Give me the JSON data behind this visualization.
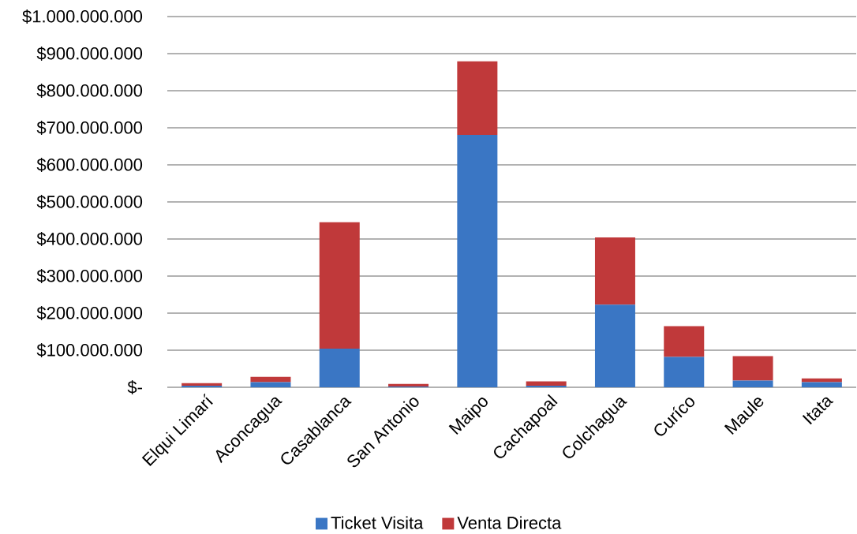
{
  "chart_data": {
    "type": "bar",
    "stacked": true,
    "categories": [
      "Elqui Limarí",
      "Aconcagua",
      "Casablanca",
      "San Antonio",
      "Maipo",
      "Cachapoal",
      "Colchagua",
      "Curíco",
      "Maule",
      "Itata"
    ],
    "series": [
      {
        "name": "Ticket Visita",
        "color": "#3a76c4",
        "values": [
          4000000,
          14000000,
          104000000,
          2000000,
          681000000,
          4000000,
          223000000,
          82000000,
          18000000,
          14000000
        ]
      },
      {
        "name": "Venta Directa",
        "color": "#c0393a",
        "values": [
          7000000,
          14000000,
          341000000,
          7000000,
          198000000,
          12000000,
          181000000,
          83000000,
          66000000,
          10000000
        ]
      }
    ],
    "ylim": [
      0,
      1000000000
    ],
    "yticks": [
      {
        "value": 0,
        "label": "$-"
      },
      {
        "value": 100000000,
        "label": "$100.000.000"
      },
      {
        "value": 200000000,
        "label": "$200.000.000"
      },
      {
        "value": 300000000,
        "label": "$300.000.000"
      },
      {
        "value": 400000000,
        "label": "$400.000.000"
      },
      {
        "value": 500000000,
        "label": "$500.000.000"
      },
      {
        "value": 600000000,
        "label": "$600.000.000"
      },
      {
        "value": 700000000,
        "label": "$700.000.000"
      },
      {
        "value": 800000000,
        "label": "$800.000.000"
      },
      {
        "value": 900000000,
        "label": "$900.000.000"
      },
      {
        "value": 1000000000,
        "label": "$1.000.000.000"
      }
    ],
    "grid": "y",
    "legend": "bottom"
  }
}
